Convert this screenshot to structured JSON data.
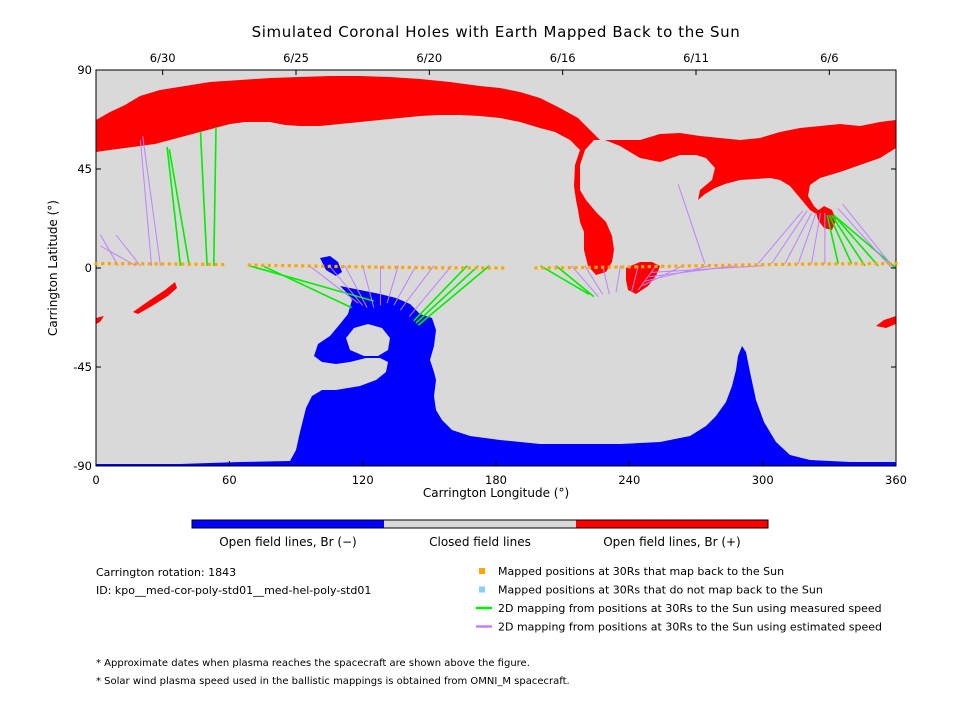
{
  "chart_data": {
    "type": "scatter",
    "title": "Simulated Coronal Holes with Earth Mapped Back to the Sun",
    "xlabel": "Carrington Longitude (°)",
    "ylabel": "Carrington Latitude (°)",
    "xlim": [
      0,
      360
    ],
    "ylim": [
      -90,
      90
    ],
    "x_ticks": [
      0,
      60,
      120,
      180,
      240,
      300,
      360
    ],
    "y_ticks": [
      90,
      45,
      0,
      -45,
      -90
    ],
    "y_tick_labels": [
      "90",
      "45",
      "0",
      "-45",
      "-90"
    ],
    "top_axis": {
      "labels": [
        "6/30",
        "6/25",
        "6/20",
        "6/16",
        "6/11",
        "6/6"
      ],
      "longitudes": [
        30,
        90,
        150,
        210,
        270,
        330
      ]
    },
    "colorbar": {
      "segments": [
        {
          "label": "Open field lines, Br (−)",
          "color": "#0000ff"
        },
        {
          "label": "Closed field lines",
          "color": "#d9d9d9"
        },
        {
          "label": "Open field lines, Br (+)",
          "color": "#ff0000"
        }
      ]
    },
    "info_lines": [
      "Carrington rotation: 1843",
      "ID: kpo__med-cor-poly-std01__med-hel-poly-std01"
    ],
    "legend": [
      {
        "label": "Mapped positions at 30Rs that map back to the Sun",
        "color": "#ffa500",
        "marker": "square"
      },
      {
        "label": "Mapped positions at 30Rs that do not map back to the Sun",
        "color": "#87cefa",
        "marker": "square"
      },
      {
        "label": "2D mapping from positions at 30Rs to the Sun using measured speed",
        "color": "#00ee00",
        "marker": "line"
      },
      {
        "label": "2D mapping from positions at 30Rs to the Sun using estimated speed",
        "color": "#c080ff",
        "marker": "line"
      }
    ],
    "footnotes": [
      "* Approximate dates when plasma reaches the spacecraft are shown above the figure.",
      "* Solar wind plasma speed used in the ballistic mappings is obtained from OMNI_M spacecraft."
    ],
    "background_color": "#d9d9d9",
    "open_negative_color": "#0000ff",
    "open_positive_color": "#ff0000",
    "mapped_points": {
      "lon_min": 0,
      "lon_max": 360,
      "step": 3,
      "gaps": [
        [
          57,
          68
        ],
        [
          183,
          197
        ]
      ],
      "lat_fn": "approx 2 to 0 deg sinusoidal"
    },
    "mappings": [
      {
        "from": [
          18,
          1
        ],
        "to": [
          2,
          10
        ],
        "speed": "estimated"
      },
      {
        "from": [
          20,
          1
        ],
        "to": [
          9,
          15
        ],
        "speed": "estimated"
      },
      {
        "from": [
          25,
          1
        ],
        "to": [
          20,
          58
        ],
        "speed": "estimated"
      },
      {
        "from": [
          29,
          1
        ],
        "to": [
          21,
          60
        ],
        "speed": "estimated"
      },
      {
        "from": [
          38,
          1
        ],
        "to": [
          32,
          55
        ],
        "speed": "measured"
      },
      {
        "from": [
          42,
          1
        ],
        "to": [
          33,
          54
        ],
        "speed": "measured"
      },
      {
        "from": [
          50,
          1
        ],
        "to": [
          47,
          62
        ],
        "speed": "measured"
      },
      {
        "from": [
          53,
          1
        ],
        "to": [
          54,
          64
        ],
        "speed": "measured"
      },
      {
        "from": [
          10,
          1
        ],
        "to": [
          2,
          15
        ],
        "speed": "estimated"
      },
      {
        "from": [
          69,
          1
        ],
        "to": [
          125,
          -15
        ],
        "speed": "measured"
      },
      {
        "from": [
          75,
          1
        ],
        "to": [
          115,
          -18
        ],
        "speed": "measured"
      },
      {
        "from": [
          96,
          1
        ],
        "to": [
          118,
          -16
        ],
        "speed": "estimated"
      },
      {
        "from": [
          105,
          1
        ],
        "to": [
          120,
          -17
        ],
        "speed": "estimated"
      },
      {
        "from": [
          112,
          1
        ],
        "to": [
          122,
          -18
        ],
        "speed": "estimated"
      },
      {
        "from": [
          120,
          1
        ],
        "to": [
          125,
          -18
        ],
        "speed": "estimated"
      },
      {
        "from": [
          128,
          1
        ],
        "to": [
          128,
          -17
        ],
        "speed": "estimated"
      },
      {
        "from": [
          136,
          1
        ],
        "to": [
          131,
          -16
        ],
        "speed": "estimated"
      },
      {
        "from": [
          144,
          1
        ],
        "to": [
          134,
          -17
        ],
        "speed": "estimated"
      },
      {
        "from": [
          152,
          1
        ],
        "to": [
          137,
          -19
        ],
        "speed": "estimated"
      },
      {
        "from": [
          160,
          1
        ],
        "to": [
          141,
          -22
        ],
        "speed": "estimated"
      },
      {
        "from": [
          167,
          1
        ],
        "to": [
          143,
          -24
        ],
        "speed": "measured"
      },
      {
        "from": [
          172,
          1
        ],
        "to": [
          144,
          -25
        ],
        "speed": "measured"
      },
      {
        "from": [
          177,
          1
        ],
        "to": [
          145,
          -26
        ],
        "speed": "measured"
      },
      {
        "from": [
          200,
          1
        ],
        "to": [
          222,
          -12
        ],
        "speed": "measured"
      },
      {
        "from": [
          207,
          1
        ],
        "to": [
          224,
          -13
        ],
        "speed": "measured"
      },
      {
        "from": [
          214,
          1
        ],
        "to": [
          226,
          -13
        ],
        "speed": "estimated"
      },
      {
        "from": [
          220,
          1
        ],
        "to": [
          228,
          -12
        ],
        "speed": "estimated"
      },
      {
        "from": [
          228,
          1
        ],
        "to": [
          231,
          -12
        ],
        "speed": "estimated"
      },
      {
        "from": [
          236,
          1
        ],
        "to": [
          234,
          -11
        ],
        "speed": "estimated"
      },
      {
        "from": [
          244,
          1
        ],
        "to": [
          241,
          -11
        ],
        "speed": "estimated"
      },
      {
        "from": [
          252,
          1
        ],
        "to": [
          244,
          -10
        ],
        "speed": "estimated"
      },
      {
        "from": [
          264,
          1
        ],
        "to": [
          246,
          -8
        ],
        "speed": "estimated"
      },
      {
        "from": [
          276,
          1
        ],
        "to": [
          247,
          -6
        ],
        "speed": "estimated"
      },
      {
        "from": [
          288,
          1
        ],
        "to": [
          249,
          -4
        ],
        "speed": "estimated"
      },
      {
        "from": [
          300,
          1
        ],
        "to": [
          250,
          -2
        ],
        "speed": "estimated"
      },
      {
        "from": [
          274,
          2
        ],
        "to": [
          262,
          38
        ],
        "speed": "estimated"
      },
      {
        "from": [
          298,
          2
        ],
        "to": [
          318,
          26
        ],
        "speed": "estimated"
      },
      {
        "from": [
          304,
          2
        ],
        "to": [
          320,
          26
        ],
        "speed": "estimated"
      },
      {
        "from": [
          310,
          2
        ],
        "to": [
          322,
          25
        ],
        "speed": "estimated"
      },
      {
        "from": [
          316,
          2
        ],
        "to": [
          324,
          25
        ],
        "speed": "estimated"
      },
      {
        "from": [
          322,
          2
        ],
        "to": [
          326,
          25
        ],
        "speed": "estimated"
      },
      {
        "from": [
          328,
          2
        ],
        "to": [
          328,
          25
        ],
        "speed": "estimated"
      },
      {
        "from": [
          334,
          2
        ],
        "to": [
          329,
          24
        ],
        "speed": "measured"
      },
      {
        "from": [
          340,
          2
        ],
        "to": [
          330,
          24
        ],
        "speed": "measured"
      },
      {
        "from": [
          346,
          1
        ],
        "to": [
          331,
          24
        ],
        "speed": "measured"
      },
      {
        "from": [
          352,
          1
        ],
        "to": [
          332,
          24
        ],
        "speed": "measured"
      },
      {
        "from": [
          360,
          0
        ],
        "to": [
          332,
          24
        ],
        "speed": "measured"
      },
      {
        "from": [
          358,
          0
        ],
        "to": [
          334,
          27
        ],
        "speed": "estimated"
      },
      {
        "from": [
          359,
          0
        ],
        "to": [
          336,
          29
        ],
        "speed": "estimated"
      }
    ]
  }
}
